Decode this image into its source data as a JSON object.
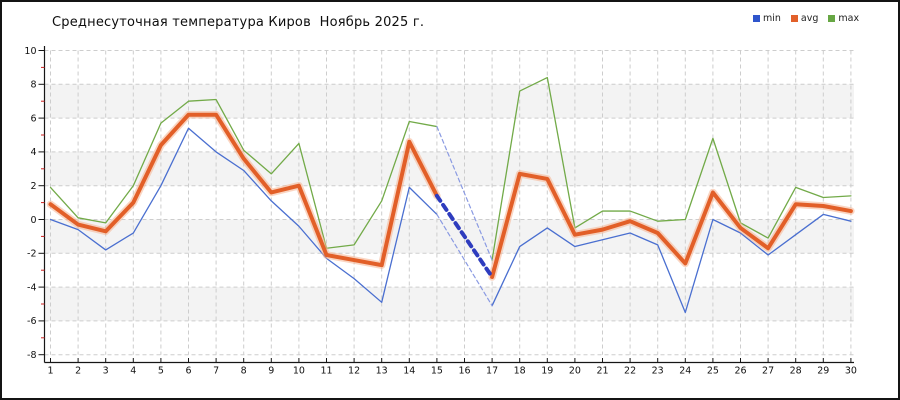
{
  "title": "Среднесуточная температура Киров  Ноябрь 2025 г.",
  "legend": [
    {
      "label": "min",
      "color": "#2f55cc"
    },
    {
      "label": "avg",
      "color": "#e2602a"
    },
    {
      "label": "max",
      "color": "#67a744"
    }
  ],
  "chart_data": {
    "type": "line",
    "title": "Среднесуточная температура Киров  Ноябрь 2025 г.",
    "xlabel": "",
    "ylabel": "",
    "ylim": [
      -8,
      10
    ],
    "yticks": [
      10,
      8,
      6,
      4,
      2,
      0,
      -2,
      -4,
      -6,
      -8
    ],
    "minor_ytick_color": "#cc2222",
    "grid": true,
    "legend_position": "top-right",
    "band_color": "#f3f3f3",
    "bands_between": [
      [
        8,
        6
      ],
      [
        4,
        2
      ],
      [
        0,
        -2
      ],
      [
        -4,
        -6
      ]
    ],
    "days": [
      1,
      2,
      3,
      4,
      5,
      6,
      7,
      8,
      9,
      10,
      11,
      12,
      13,
      14,
      15,
      16,
      17,
      18,
      19,
      20,
      21,
      22,
      23,
      24,
      25,
      26,
      27,
      28,
      29,
      30
    ],
    "note_gap": "day 16 has no data; dashed forecast-style bridge connects day 15 to day 17",
    "series": [
      {
        "name": "min",
        "color": "#4a6fd0",
        "width": 1.3,
        "values": [
          0.0,
          -0.6,
          -1.8,
          -0.8,
          2.0,
          5.4,
          4.0,
          2.9,
          1.1,
          -0.4,
          -2.3,
          -3.5,
          -4.9,
          1.9,
          0.3,
          null,
          -5.1,
          -1.6,
          -0.5,
          -1.6,
          -1.2,
          -0.8,
          -1.5,
          -5.5,
          0.0,
          -0.8,
          -2.1,
          -0.9,
          0.3,
          -0.1
        ]
      },
      {
        "name": "avg",
        "color": "#e25f28",
        "halo": "#f6b390",
        "width": 4,
        "values": [
          0.9,
          -0.3,
          -0.7,
          1.0,
          4.4,
          6.2,
          6.2,
          3.6,
          1.6,
          2.0,
          -2.1,
          -2.4,
          -2.7,
          4.6,
          1.4,
          null,
          -3.4,
          2.7,
          2.4,
          -0.9,
          -0.6,
          -0.1,
          -0.8,
          -2.6,
          1.6,
          -0.5,
          -1.7,
          0.9,
          0.8,
          0.5
        ]
      },
      {
        "name": "max",
        "color": "#72aa48",
        "width": 1.3,
        "values": [
          1.9,
          0.1,
          -0.2,
          2.0,
          5.7,
          7.0,
          7.1,
          4.1,
          2.7,
          4.5,
          -1.7,
          -1.5,
          1.1,
          5.8,
          5.5,
          null,
          -2.4,
          7.6,
          8.4,
          -0.5,
          0.5,
          0.5,
          -0.1,
          0.0,
          4.8,
          -0.2,
          -1.1,
          1.9,
          1.3,
          1.4
        ]
      }
    ],
    "gap_bridge": {
      "between_days": [
        15,
        17
      ],
      "styles": {
        "min": {
          "color": "#8a9ae2",
          "width": 1.2,
          "dash": "4 3"
        },
        "avg": {
          "color": "#2e3cbe",
          "width": 4,
          "dash": "6 5"
        },
        "max": {
          "color": "#8a9ae2",
          "width": 1.2,
          "dash": "4 3"
        }
      }
    }
  }
}
